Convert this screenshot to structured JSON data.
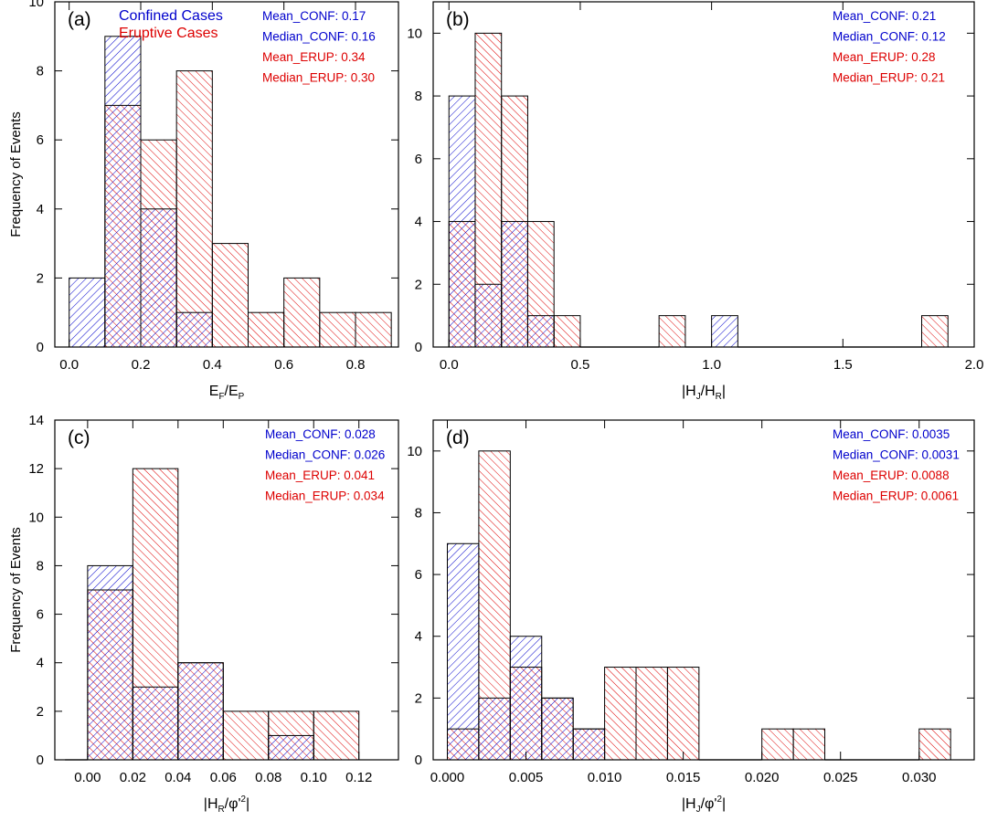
{
  "figure": {
    "y_axis_label": "Frequency of Events",
    "colors": {
      "confined": "#0000cc",
      "eruptive": "#dd0000",
      "frame": "#000000"
    }
  },
  "chart_data": [
    {
      "type": "bar",
      "panel_label": "(a)",
      "xlabel": "E_F/E_P",
      "ylabel": "Frequency of Events",
      "xlim": [
        -0.04,
        0.92
      ],
      "ylim": [
        0,
        10
      ],
      "xticks": [
        0.0,
        0.2,
        0.4,
        0.6,
        0.8
      ],
      "xtick_labels": [
        "0.0",
        "0.2",
        "0.4",
        "0.6",
        "0.8"
      ],
      "yticks": [
        0,
        2,
        4,
        6,
        8,
        10
      ],
      "bin_edges": [
        0.0,
        0.1,
        0.2,
        0.3,
        0.4,
        0.5,
        0.6,
        0.7,
        0.8,
        0.9
      ],
      "legend": [
        "Confined Cases",
        "Eruptive Cases"
      ],
      "series": [
        {
          "name": "Confined Cases",
          "values": [
            2,
            9,
            4,
            1,
            0,
            0,
            0,
            0,
            0
          ]
        },
        {
          "name": "Eruptive Cases",
          "values": [
            0,
            7,
            6,
            8,
            3,
            1,
            2,
            1,
            1
          ]
        }
      ],
      "stats": [
        {
          "name": "Mean_CONF",
          "value": "0.17",
          "color": "blue"
        },
        {
          "name": "Median_CONF",
          "value": "0.16",
          "color": "blue"
        },
        {
          "name": "Mean_ERUP",
          "value": "0.34",
          "color": "red"
        },
        {
          "name": "Median_ERUP",
          "value": "0.30",
          "color": "red"
        }
      ]
    },
    {
      "type": "bar",
      "panel_label": "(b)",
      "xlabel": "|H_J/H_R|",
      "ylabel": "",
      "xlim": [
        -0.06,
        2.0
      ],
      "ylim": [
        0,
        11
      ],
      "xticks": [
        0.0,
        0.5,
        1.0,
        1.5,
        2.0
      ],
      "xtick_labels": [
        "0.0",
        "0.5",
        "1.0",
        "1.5",
        "2.0"
      ],
      "yticks": [
        0,
        2,
        4,
        6,
        8,
        10
      ],
      "bin_edges": [
        0.0,
        0.1,
        0.2,
        0.3,
        0.4,
        0.5,
        0.6,
        0.7,
        0.8,
        0.9,
        1.0,
        1.1,
        1.2,
        1.3,
        1.4,
        1.5,
        1.6,
        1.7,
        1.8,
        1.9
      ],
      "series": [
        {
          "name": "Confined Cases",
          "values": [
            8,
            2,
            4,
            1,
            0,
            0,
            0,
            0,
            0,
            0,
            1,
            0,
            0,
            0,
            0,
            0,
            0,
            0,
            0
          ]
        },
        {
          "name": "Eruptive Cases",
          "values": [
            4,
            10,
            8,
            4,
            1,
            0,
            0,
            0,
            1,
            0,
            0,
            0,
            0,
            0,
            0,
            0,
            0,
            0,
            1
          ]
        }
      ],
      "stats": [
        {
          "name": "Mean_CONF",
          "value": "0.21",
          "color": "blue"
        },
        {
          "name": "Median_CONF",
          "value": "0.12",
          "color": "blue"
        },
        {
          "name": "Mean_ERUP",
          "value": "0.28",
          "color": "red"
        },
        {
          "name": "Median_ERUP",
          "value": "0.21",
          "color": "red"
        }
      ]
    },
    {
      "type": "bar",
      "panel_label": "(c)",
      "xlabel": "|H_R/φ'^2|",
      "ylabel": "Frequency of Events",
      "xlim": [
        -0.0145,
        0.1375
      ],
      "ylim": [
        0,
        14
      ],
      "xticks": [
        0.0,
        0.02,
        0.04,
        0.06,
        0.08,
        0.1,
        0.12
      ],
      "xtick_labels": [
        "0.00",
        "0.02",
        "0.04",
        "0.06",
        "0.08",
        "0.10",
        "0.12"
      ],
      "yticks": [
        0,
        2,
        4,
        6,
        8,
        10,
        12,
        14
      ],
      "bin_edges": [
        -0.01,
        0.0,
        0.02,
        0.04,
        0.06,
        0.08,
        0.1,
        0.12
      ],
      "series": [
        {
          "name": "Confined Cases",
          "values": [
            0,
            8,
            3,
            4,
            0,
            1,
            0
          ]
        },
        {
          "name": "Eruptive Cases",
          "values": [
            0,
            7,
            12,
            4,
            2,
            2,
            2
          ]
        }
      ],
      "stats": [
        {
          "name": "Mean_CONF",
          "value": "0.028",
          "color": "blue"
        },
        {
          "name": "Median_CONF",
          "value": "0.026",
          "color": "blue"
        },
        {
          "name": "Mean_ERUP",
          "value": "0.041",
          "color": "red"
        },
        {
          "name": "Median_ERUP",
          "value": "0.034",
          "color": "red"
        }
      ]
    },
    {
      "type": "bar",
      "panel_label": "(d)",
      "xlabel": "|H_J/φ'^2|",
      "ylabel": "",
      "xlim": [
        -0.0009,
        0.0335
      ],
      "ylim": [
        0,
        11
      ],
      "xticks": [
        0.0,
        0.005,
        0.01,
        0.015,
        0.02,
        0.025,
        0.03
      ],
      "xtick_labels": [
        "0.000",
        "0.005",
        "0.010",
        "0.015",
        "0.020",
        "0.025",
        "0.030"
      ],
      "yticks": [
        0,
        2,
        4,
        6,
        8,
        10
      ],
      "bin_edges": [
        0.0,
        0.002,
        0.004,
        0.006,
        0.008,
        0.01,
        0.012,
        0.014,
        0.016,
        0.018,
        0.02,
        0.022,
        0.024,
        0.026,
        0.028,
        0.03,
        0.032
      ],
      "series": [
        {
          "name": "Confined Cases",
          "values": [
            7,
            2,
            4,
            2,
            1,
            0,
            0,
            0,
            0,
            0,
            0,
            0,
            0,
            0,
            0,
            0
          ]
        },
        {
          "name": "Eruptive Cases",
          "values": [
            1,
            10,
            3,
            2,
            1,
            3,
            3,
            3,
            0,
            0,
            1,
            1,
            0,
            0,
            0,
            1
          ]
        }
      ],
      "stats": [
        {
          "name": "Mean_CONF",
          "value": "0.0035",
          "color": "blue"
        },
        {
          "name": "Median_CONF",
          "value": "0.0031",
          "color": "blue"
        },
        {
          "name": "Mean_ERUP",
          "value": "0.0088",
          "color": "red"
        },
        {
          "name": "Median_ERUP",
          "value": "0.0061",
          "color": "red"
        }
      ]
    }
  ]
}
